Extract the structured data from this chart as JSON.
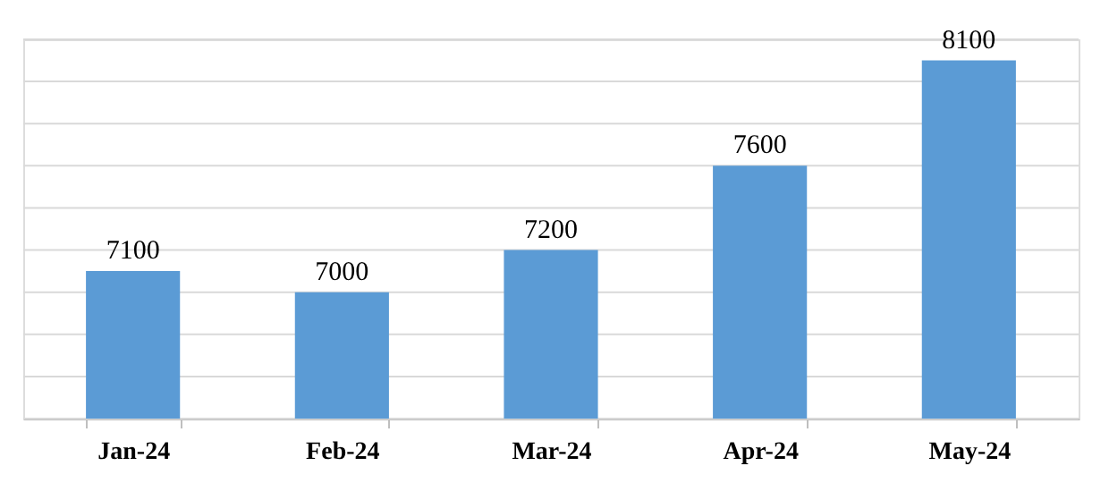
{
  "chart_data": {
    "type": "bar",
    "categories": [
      "Jan-24",
      "Feb-24",
      "Mar-24",
      "Apr-24",
      "May-24"
    ],
    "values": [
      7100,
      7000,
      7200,
      7600,
      8100
    ],
    "color": "#5b9bd5",
    "ylim": [
      6400,
      8200
    ],
    "yticks": [
      {
        "value": 6400,
        "label": null
      },
      {
        "value": 6600,
        "label": null
      },
      {
        "value": 6800,
        "label": null
      },
      {
        "value": 7000,
        "label": null
      },
      {
        "value": 7200,
        "label": null
      },
      {
        "value": 7400,
        "label": null
      },
      {
        "value": 7600,
        "label": null
      },
      {
        "value": 7800,
        "label": null
      },
      {
        "value": 8000,
        "label": null
      },
      {
        "value": 8200,
        "label": null
      }
    ],
    "grid": "y",
    "data_labels": true,
    "tick_labels": "x"
  }
}
